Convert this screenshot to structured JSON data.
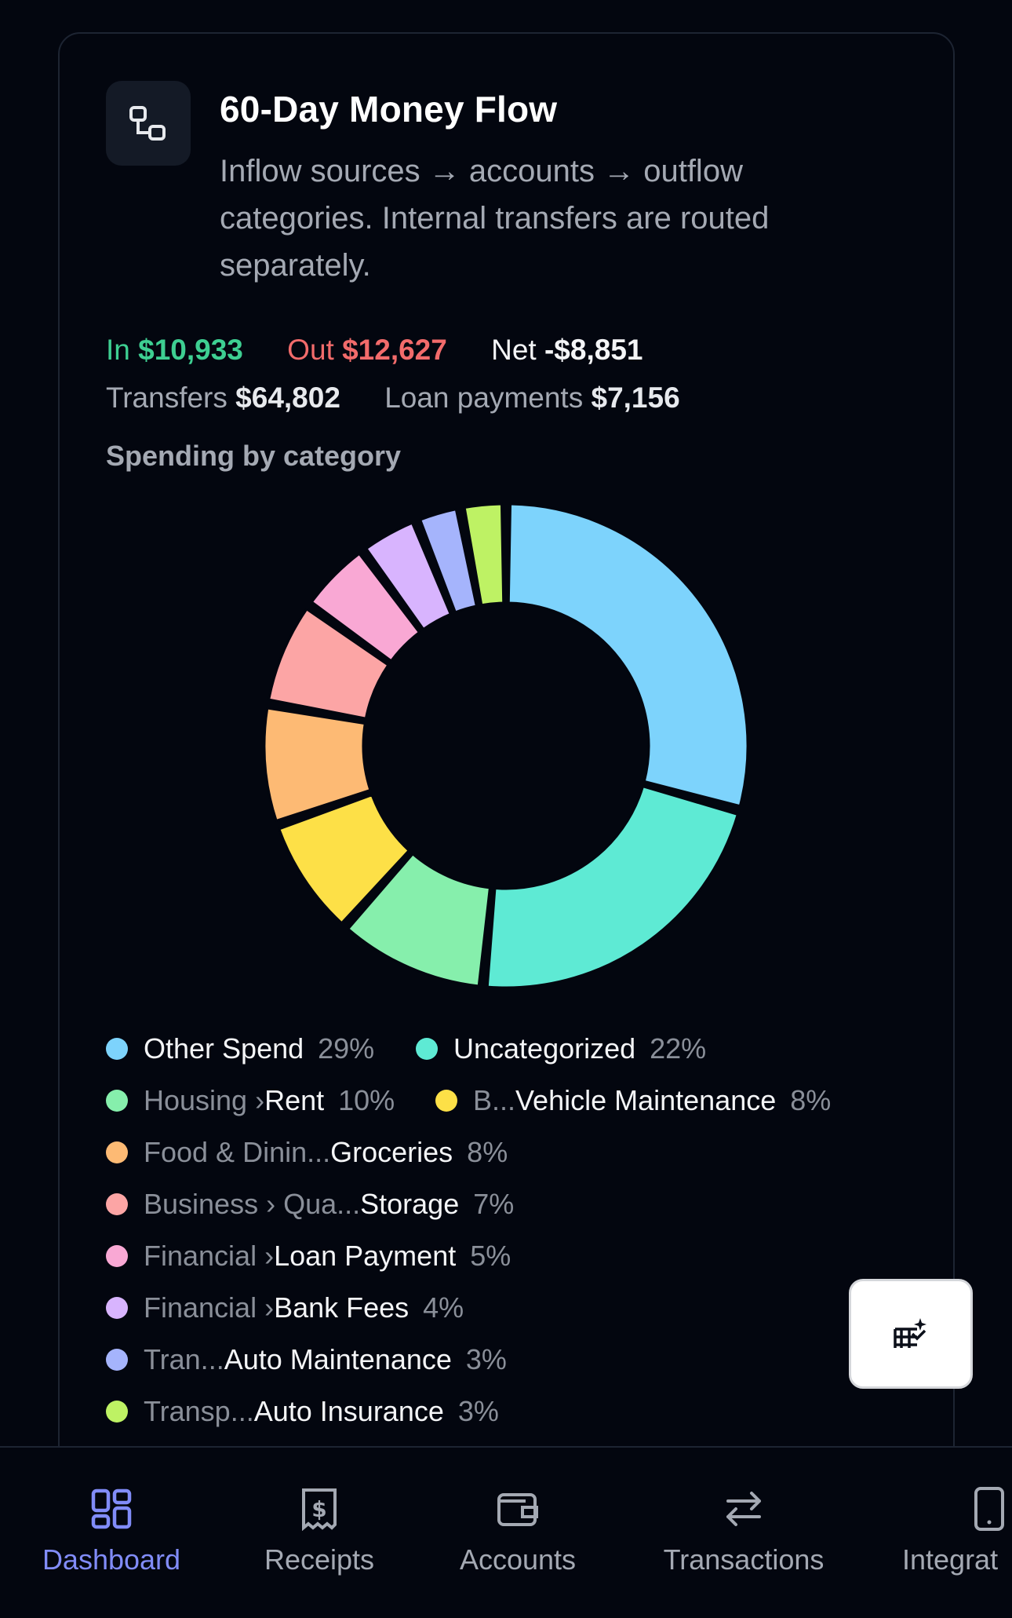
{
  "card": {
    "title": "60-Day Money Flow",
    "subtitle": "Inflow sources → accounts → outflow categories. Internal transfers are routed separately.",
    "icon": "flow-nodes-icon"
  },
  "stats": {
    "in_label": "In",
    "in_value": "$10,933",
    "out_label": "Out",
    "out_value": "$12,627",
    "net_label": "Net",
    "net_value": "-$8,851",
    "transfers_label": "Transfers",
    "transfers_value": "$64,802",
    "loan_label": "Loan payments",
    "loan_value": "$7,156"
  },
  "section_label": "Spending by category",
  "chart_data": {
    "type": "pie",
    "donut": true,
    "legend_position": "bottom",
    "slices": [
      {
        "prefix": "",
        "name": "Other Spend",
        "pct_label": "29%",
        "value": 29,
        "color": "#7dd3fc"
      },
      {
        "prefix": "",
        "name": "Uncategorized",
        "pct_label": "22%",
        "value": 22,
        "color": "#5eead4"
      },
      {
        "prefix": "Housing ›",
        "name": "Rent",
        "pct_label": "10%",
        "value": 10,
        "color": "#86efac"
      },
      {
        "prefix": "B...",
        "name": "Vehicle Maintenance",
        "pct_label": "8%",
        "value": 8,
        "color": "#fde047"
      },
      {
        "prefix": "Food & Dinin...",
        "name": "Groceries",
        "pct_label": "8%",
        "value": 8,
        "color": "#fdba74"
      },
      {
        "prefix": "Business › Qua...",
        "name": "Storage",
        "pct_label": "7%",
        "value": 7,
        "color": "#fca5a5"
      },
      {
        "prefix": "Financial ›",
        "name": "Loan Payment",
        "pct_label": "5%",
        "value": 5,
        "color": "#f9a8d4"
      },
      {
        "prefix": "Financial ›",
        "name": "Bank Fees",
        "pct_label": "4%",
        "value": 4,
        "color": "#d8b4fe"
      },
      {
        "prefix": "Tran...",
        "name": "Auto Maintenance",
        "pct_label": "3%",
        "value": 3,
        "color": "#a5b4fc"
      },
      {
        "prefix": "Transp...",
        "name": "Auto Insurance",
        "pct_label": "3%",
        "value": 3,
        "color": "#bef264"
      }
    ]
  },
  "fab": {
    "icon": "table-sparkle-icon"
  },
  "nav": {
    "items": [
      {
        "label": "Dashboard",
        "icon": "dashboard-grid-icon",
        "active": true
      },
      {
        "label": "Receipts",
        "icon": "receipt-dollar-icon",
        "active": false
      },
      {
        "label": "Accounts",
        "icon": "wallet-icon",
        "active": false
      },
      {
        "label": "Transactions",
        "icon": "arrows-left-right-icon",
        "active": false
      },
      {
        "label": "Integrat",
        "icon": "phone-device-icon",
        "active": false
      }
    ],
    "active_color": "#818cf8",
    "inactive_color": "#a4a9b3"
  }
}
